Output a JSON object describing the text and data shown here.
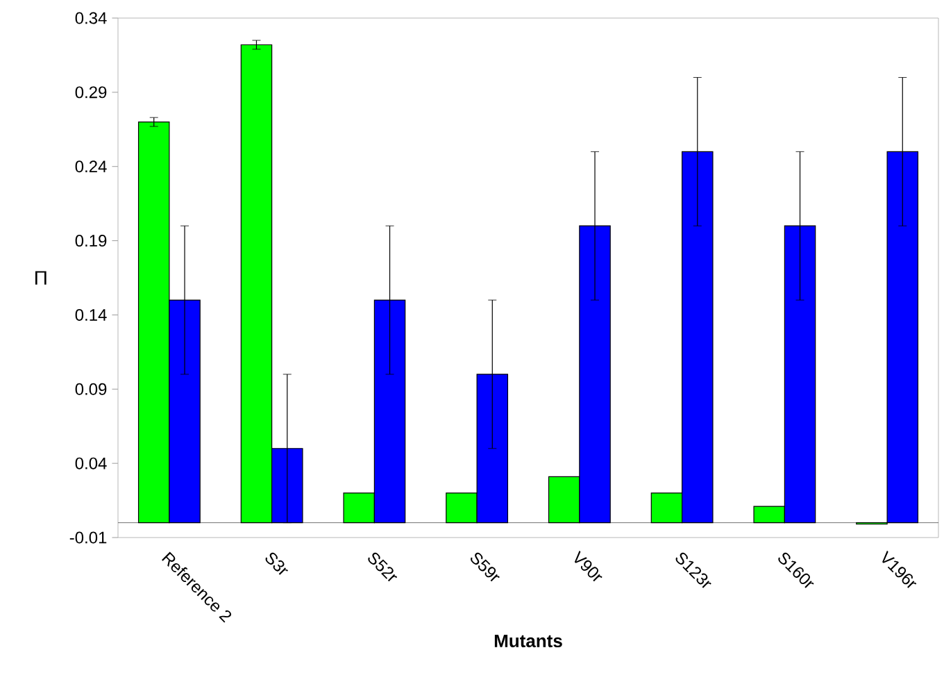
{
  "chart_data": {
    "type": "bar",
    "xlabel": "Mutants",
    "ylabel": "Π",
    "categories": [
      "Reference 2",
      "S3r",
      "S52r",
      "S59r",
      "V90r",
      "S123r",
      "S160r",
      "V196r"
    ],
    "series": [
      {
        "color": "#00ff00",
        "values": [
          0.27,
          0.322,
          0.02,
          0.02,
          0.031,
          0.02,
          0.011,
          -0.001
        ],
        "errors": [
          0.003,
          0.003,
          null,
          null,
          null,
          null,
          null,
          null
        ]
      },
      {
        "color": "#0000ff",
        "values": [
          0.15,
          0.05,
          0.15,
          0.1,
          0.2,
          0.25,
          0.2,
          0.25
        ],
        "errors": [
          0.05,
          0.05,
          0.05,
          0.05,
          0.05,
          0.05,
          0.05,
          0.05
        ]
      }
    ],
    "ylim": [
      -0.01,
      0.34
    ],
    "yticks": [
      -0.01,
      0.04,
      0.09,
      0.14,
      0.19,
      0.24,
      0.29,
      0.34
    ],
    "grid": false
  }
}
